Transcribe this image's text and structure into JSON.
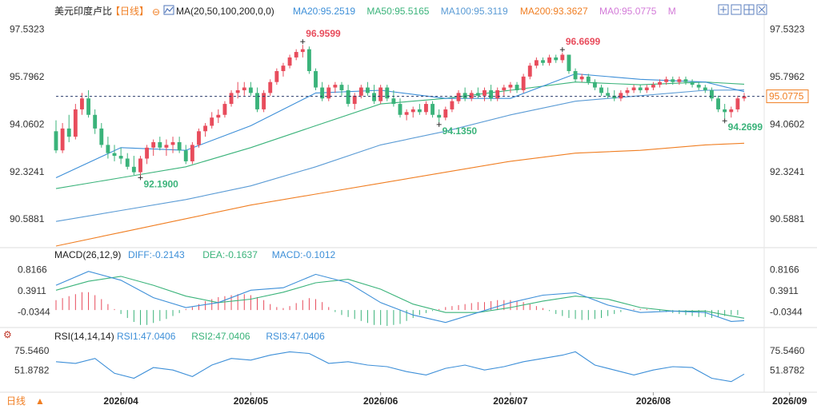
{
  "header": {
    "symbol": "美元印度卢比",
    "period": "【日线】",
    "ma_label": "MA(20,50,100,200,0,0)",
    "toolbar_icons": [
      "add-icon",
      "minus-icon",
      "grid-icon",
      "close-icon"
    ]
  },
  "colors": {
    "up": "#e84c5c",
    "down": "#3ab37a",
    "ma20": "#3d8fd8",
    "ma50": "#3ab37a",
    "ma100": "#5a9bd5",
    "ma200": "#f07e22",
    "ma0": "#d37ad8",
    "diff": "#3d8fd8",
    "dea": "#3ab37a",
    "price_tag": "#f07e22"
  },
  "chart_data": [
    {
      "type": "candlestick",
      "title": "美元印度卢比【日线】",
      "legend": [
        {
          "name": "MA20",
          "value": "95.2519"
        },
        {
          "name": "MA50",
          "value": "95.5165"
        },
        {
          "name": "MA100",
          "value": "95.3119"
        },
        {
          "name": "MA200",
          "value": "93.3627"
        },
        {
          "name": "MA0",
          "value": "95.0775"
        },
        {
          "name": "M",
          "value": ""
        }
      ],
      "y_ticks": [
        "97.5323",
        "95.7962",
        "94.0602",
        "92.3241",
        "90.5881"
      ],
      "ylim": [
        89.6,
        97.9
      ],
      "current_price": "95.0775",
      "annotations": [
        {
          "text": "96.9599",
          "type": "high"
        },
        {
          "text": "96.6699",
          "type": "high"
        },
        {
          "text": "92.1900",
          "type": "low"
        },
        {
          "text": "94.1350",
          "type": "low"
        },
        {
          "text": "94.2699",
          "type": "low"
        }
      ],
      "x_ticks": [
        "2026/04",
        "2026/05",
        "2026/06",
        "2026/07",
        "2026/08",
        "2026/09"
      ],
      "x_tick_index": [
        10,
        30,
        50,
        70,
        92,
        113
      ],
      "ohlc": [
        [
          93.8,
          94.2,
          93.0,
          93.1
        ],
        [
          93.1,
          94.1,
          93.0,
          93.9
        ],
        [
          93.9,
          94.4,
          93.4,
          93.6
        ],
        [
          93.6,
          94.8,
          93.5,
          94.6
        ],
        [
          94.6,
          95.2,
          94.4,
          95.0
        ],
        [
          95.0,
          95.3,
          94.3,
          94.4
        ],
        [
          94.4,
          94.6,
          93.7,
          93.9
        ],
        [
          93.9,
          94.1,
          93.2,
          93.3
        ],
        [
          93.3,
          93.6,
          92.8,
          93.0
        ],
        [
          93.0,
          93.3,
          92.7,
          92.9
        ],
        [
          92.9,
          93.2,
          92.6,
          92.8
        ],
        [
          92.8,
          93.0,
          92.4,
          92.5
        ],
        [
          92.5,
          92.9,
          92.2,
          92.3
        ],
        [
          92.3,
          92.9,
          92.19,
          92.8
        ],
        [
          92.8,
          93.3,
          92.6,
          93.2
        ],
        [
          93.2,
          93.5,
          92.9,
          93.4
        ],
        [
          93.4,
          93.6,
          93.1,
          93.2
        ],
        [
          93.2,
          93.5,
          92.9,
          93.3
        ],
        [
          93.3,
          93.6,
          93.0,
          93.4
        ],
        [
          93.4,
          93.6,
          93.0,
          93.1
        ],
        [
          93.1,
          93.3,
          92.6,
          92.7
        ],
        [
          92.7,
          93.4,
          92.6,
          93.3
        ],
        [
          93.3,
          93.9,
          93.2,
          93.8
        ],
        [
          93.8,
          94.1,
          93.6,
          94.0
        ],
        [
          94.0,
          94.5,
          93.9,
          94.3
        ],
        [
          94.3,
          94.6,
          94.1,
          94.4
        ],
        [
          94.4,
          94.9,
          94.3,
          94.8
        ],
        [
          94.8,
          95.3,
          94.7,
          95.2
        ],
        [
          95.2,
          95.6,
          95.0,
          95.3
        ],
        [
          95.3,
          95.6,
          95.1,
          95.4
        ],
        [
          95.4,
          95.6,
          95.1,
          95.2
        ],
        [
          95.2,
          95.4,
          94.5,
          94.6
        ],
        [
          94.6,
          95.3,
          94.5,
          95.2
        ],
        [
          95.2,
          95.7,
          95.1,
          95.6
        ],
        [
          95.6,
          96.1,
          95.5,
          96.0
        ],
        [
          96.0,
          96.3,
          95.8,
          96.2
        ],
        [
          96.2,
          96.6,
          96.1,
          96.5
        ],
        [
          96.5,
          96.8,
          96.4,
          96.7
        ],
        [
          96.7,
          96.96,
          96.5,
          96.8
        ],
        [
          96.8,
          96.9,
          95.9,
          96.0
        ],
        [
          96.0,
          96.1,
          95.3,
          95.4
        ],
        [
          95.4,
          95.6,
          94.9,
          95.0
        ],
        [
          95.0,
          95.5,
          94.9,
          95.4
        ],
        [
          95.4,
          95.6,
          95.2,
          95.5
        ],
        [
          95.5,
          95.6,
          95.1,
          95.3
        ],
        [
          95.3,
          95.5,
          94.7,
          94.8
        ],
        [
          94.8,
          95.2,
          94.6,
          95.1
        ],
        [
          95.1,
          95.5,
          95.0,
          95.4
        ],
        [
          95.4,
          95.6,
          95.1,
          95.2
        ],
        [
          95.2,
          95.5,
          94.8,
          94.9
        ],
        [
          94.9,
          95.5,
          94.8,
          95.4
        ],
        [
          95.4,
          95.5,
          94.9,
          95.0
        ],
        [
          95.0,
          95.3,
          94.7,
          94.8
        ],
        [
          94.8,
          95.0,
          94.3,
          94.4
        ],
        [
          94.4,
          94.6,
          94.2,
          94.5
        ],
        [
          94.5,
          94.7,
          94.3,
          94.6
        ],
        [
          94.6,
          94.8,
          94.4,
          94.5
        ],
        [
          94.5,
          94.9,
          94.4,
          94.8
        ],
        [
          94.8,
          94.9,
          94.3,
          94.4
        ],
        [
          94.4,
          94.6,
          94.135,
          94.3
        ],
        [
          94.3,
          94.7,
          94.2,
          94.6
        ],
        [
          94.6,
          95.0,
          94.5,
          94.9
        ],
        [
          94.9,
          95.3,
          94.8,
          95.2
        ],
        [
          95.2,
          95.4,
          94.9,
          95.0
        ],
        [
          95.0,
          95.3,
          94.9,
          95.2
        ],
        [
          95.2,
          95.4,
          95.0,
          95.1
        ],
        [
          95.1,
          95.4,
          94.9,
          95.3
        ],
        [
          95.3,
          95.5,
          94.9,
          95.0
        ],
        [
          95.0,
          95.4,
          94.9,
          95.3
        ],
        [
          95.3,
          95.5,
          95.1,
          95.4
        ],
        [
          95.4,
          95.6,
          95.2,
          95.5
        ],
        [
          95.5,
          95.6,
          95.2,
          95.3
        ],
        [
          95.3,
          95.9,
          95.2,
          95.8
        ],
        [
          95.8,
          96.3,
          95.7,
          96.2
        ],
        [
          96.2,
          96.5,
          96.1,
          96.4
        ],
        [
          96.4,
          96.5,
          96.2,
          96.3
        ],
        [
          96.3,
          96.6,
          96.2,
          96.5
        ],
        [
          96.5,
          96.6,
          96.3,
          96.4
        ],
        [
          96.4,
          96.67,
          96.3,
          96.6
        ],
        [
          96.6,
          96.6,
          95.9,
          96.0
        ],
        [
          96.0,
          96.1,
          95.6,
          95.7
        ],
        [
          95.7,
          95.9,
          95.6,
          95.8
        ],
        [
          95.8,
          95.9,
          95.5,
          95.6
        ],
        [
          95.6,
          95.7,
          95.3,
          95.4
        ],
        [
          95.4,
          95.5,
          95.1,
          95.2
        ],
        [
          95.2,
          95.4,
          95.0,
          95.1
        ],
        [
          95.1,
          95.3,
          94.9,
          95.0
        ],
        [
          95.0,
          95.3,
          94.9,
          95.2
        ],
        [
          95.2,
          95.4,
          95.1,
          95.3
        ],
        [
          95.3,
          95.5,
          95.2,
          95.4
        ],
        [
          95.4,
          95.5,
          95.2,
          95.3
        ],
        [
          95.3,
          95.5,
          95.2,
          95.4
        ],
        [
          95.4,
          95.6,
          95.3,
          95.5
        ],
        [
          95.5,
          95.7,
          95.4,
          95.6
        ],
        [
          95.6,
          95.8,
          95.5,
          95.7
        ],
        [
          95.7,
          95.8,
          95.5,
          95.6
        ],
        [
          95.6,
          95.8,
          95.5,
          95.7
        ],
        [
          95.7,
          95.8,
          95.5,
          95.6
        ],
        [
          95.6,
          95.7,
          95.4,
          95.5
        ],
        [
          95.5,
          95.6,
          95.3,
          95.4
        ],
        [
          95.4,
          95.5,
          95.2,
          95.3
        ],
        [
          95.3,
          95.4,
          94.9,
          95.0
        ],
        [
          95.0,
          95.1,
          94.5,
          94.6
        ],
        [
          94.6,
          94.8,
          94.27,
          94.5
        ],
        [
          94.5,
          94.7,
          94.3,
          94.6
        ],
        [
          94.6,
          95.1,
          94.5,
          95.0
        ],
        [
          95.0,
          95.2,
          94.9,
          95.08
        ]
      ],
      "ma20": [
        [
          0,
          92.1
        ],
        [
          10,
          93.2
        ],
        [
          20,
          93.1
        ],
        [
          30,
          94.0
        ],
        [
          40,
          95.2
        ],
        [
          50,
          95.3
        ],
        [
          60,
          95.0
        ],
        [
          70,
          95.0
        ],
        [
          80,
          95.9
        ],
        [
          90,
          95.7
        ],
        [
          100,
          95.6
        ],
        [
          106,
          95.25
        ]
      ],
      "ma50": [
        [
          0,
          91.7
        ],
        [
          10,
          92.1
        ],
        [
          20,
          92.5
        ],
        [
          30,
          93.2
        ],
        [
          40,
          94.0
        ],
        [
          50,
          94.8
        ],
        [
          60,
          95.0
        ],
        [
          70,
          95.3
        ],
        [
          80,
          95.6
        ],
        [
          90,
          95.5
        ],
        [
          100,
          95.6
        ],
        [
          106,
          95.52
        ]
      ],
      "ma100": [
        [
          0,
          90.5
        ],
        [
          10,
          90.9
        ],
        [
          20,
          91.3
        ],
        [
          30,
          91.8
        ],
        [
          40,
          92.5
        ],
        [
          50,
          93.3
        ],
        [
          60,
          93.8
        ],
        [
          70,
          94.4
        ],
        [
          80,
          94.9
        ],
        [
          90,
          95.1
        ],
        [
          100,
          95.3
        ],
        [
          106,
          95.31
        ]
      ],
      "ma200": [
        [
          0,
          89.6
        ],
        [
          10,
          90.1
        ],
        [
          20,
          90.6
        ],
        [
          30,
          91.1
        ],
        [
          40,
          91.5
        ],
        [
          50,
          91.9
        ],
        [
          60,
          92.3
        ],
        [
          70,
          92.7
        ],
        [
          80,
          93.0
        ],
        [
          90,
          93.1
        ],
        [
          100,
          93.3
        ],
        [
          106,
          93.36
        ]
      ]
    },
    {
      "type": "bar",
      "title": "MACD(26,12,9)",
      "legend": [
        {
          "name": "DIFF",
          "value": "-0.2143"
        },
        {
          "name": "DEA",
          "value": "-0.1637"
        },
        {
          "name": "MACD",
          "value": "-0.1012"
        }
      ],
      "y_ticks": [
        "0.8166",
        "0.3911",
        "-0.0344"
      ],
      "ylim": [
        -0.32,
        1.0
      ],
      "diff": [
        [
          0,
          0.5
        ],
        [
          5,
          0.78
        ],
        [
          10,
          0.6
        ],
        [
          15,
          0.25
        ],
        [
          20,
          0.05
        ],
        [
          25,
          0.15
        ],
        [
          30,
          0.4
        ],
        [
          35,
          0.45
        ],
        [
          40,
          0.72
        ],
        [
          45,
          0.55
        ],
        [
          50,
          0.15
        ],
        [
          55,
          -0.1
        ],
        [
          60,
          -0.25
        ],
        [
          65,
          -0.05
        ],
        [
          70,
          0.15
        ],
        [
          75,
          0.3
        ],
        [
          80,
          0.35
        ],
        [
          85,
          0.1
        ],
        [
          90,
          -0.05
        ],
        [
          95,
          -0.02
        ],
        [
          100,
          -0.05
        ],
        [
          104,
          -0.23
        ],
        [
          106,
          -0.214
        ]
      ],
      "dea": [
        [
          0,
          0.4
        ],
        [
          5,
          0.58
        ],
        [
          10,
          0.68
        ],
        [
          15,
          0.5
        ],
        [
          20,
          0.28
        ],
        [
          25,
          0.15
        ],
        [
          30,
          0.22
        ],
        [
          35,
          0.36
        ],
        [
          40,
          0.55
        ],
        [
          45,
          0.62
        ],
        [
          50,
          0.42
        ],
        [
          55,
          0.12
        ],
        [
          60,
          -0.05
        ],
        [
          65,
          -0.05
        ],
        [
          70,
          0.05
        ],
        [
          75,
          0.18
        ],
        [
          80,
          0.28
        ],
        [
          85,
          0.22
        ],
        [
          90,
          0.05
        ],
        [
          95,
          -0.02
        ],
        [
          100,
          -0.02
        ],
        [
          104,
          -0.12
        ],
        [
          106,
          -0.164
        ]
      ],
      "macd": [
        0.2,
        0.24,
        0.28,
        0.32,
        0.36,
        0.36,
        0.3,
        0.22,
        0.12,
        0.02,
        -0.08,
        -0.16,
        -0.24,
        -0.3,
        -0.3,
        -0.26,
        -0.22,
        -0.18,
        -0.12,
        -0.06,
        0.02,
        0.06,
        0.12,
        0.18,
        0.22,
        0.26,
        0.28,
        0.3,
        0.32,
        0.32,
        0.3,
        0.26,
        0.2,
        0.12,
        0.06,
        0.04,
        0.08,
        0.14,
        0.2,
        0.24,
        0.22,
        0.16,
        0.06,
        -0.04,
        -0.1,
        -0.14,
        -0.18,
        -0.22,
        -0.26,
        -0.3,
        -0.3,
        -0.32,
        -0.3,
        -0.28,
        -0.22,
        -0.16,
        -0.1,
        -0.06,
        -0.02,
        0.02,
        0.06,
        0.08,
        0.1,
        0.12,
        0.14,
        0.16,
        0.16,
        0.18,
        0.2,
        0.2,
        0.2,
        0.18,
        0.16,
        0.12,
        0.08,
        0.04,
        -0.02,
        -0.08,
        -0.12,
        -0.16,
        -0.18,
        -0.2,
        -0.2,
        -0.18,
        -0.16,
        -0.12,
        -0.08,
        -0.04,
        0.0,
        0.02,
        0.02,
        0.02,
        0.0,
        -0.02,
        -0.04,
        -0.06,
        -0.08,
        -0.1,
        -0.12,
        -0.14,
        -0.14,
        -0.16,
        -0.14,
        -0.12,
        -0.1,
        -0.101
      ]
    },
    {
      "type": "line",
      "title": "RSI(14,14,14)",
      "legend": [
        {
          "name": "RSI1",
          "value": "47.0406"
        },
        {
          "name": "RSI2",
          "value": "47.0406"
        },
        {
          "name": "RSI3",
          "value": "47.0406"
        }
      ],
      "y_ticks": [
        "75.5460",
        "51.8782"
      ],
      "ylim": [
        28,
        86
      ],
      "rsi": [
        [
          0,
          62
        ],
        [
          3,
          60
        ],
        [
          6,
          66
        ],
        [
          9,
          48
        ],
        [
          12,
          42
        ],
        [
          15,
          55
        ],
        [
          18,
          52
        ],
        [
          21,
          44
        ],
        [
          24,
          58
        ],
        [
          27,
          66
        ],
        [
          30,
          64
        ],
        [
          33,
          70
        ],
        [
          36,
          74
        ],
        [
          39,
          72
        ],
        [
          42,
          60
        ],
        [
          45,
          62
        ],
        [
          48,
          58
        ],
        [
          51,
          56
        ],
        [
          54,
          50
        ],
        [
          57,
          46
        ],
        [
          60,
          54
        ],
        [
          63,
          58
        ],
        [
          66,
          52
        ],
        [
          69,
          56
        ],
        [
          72,
          62
        ],
        [
          75,
          66
        ],
        [
          78,
          70
        ],
        [
          80,
          74
        ],
        [
          83,
          58
        ],
        [
          86,
          52
        ],
        [
          89,
          46
        ],
        [
          92,
          52
        ],
        [
          95,
          56
        ],
        [
          98,
          55
        ],
        [
          101,
          42
        ],
        [
          104,
          38
        ],
        [
          106,
          47
        ]
      ]
    }
  ]
}
